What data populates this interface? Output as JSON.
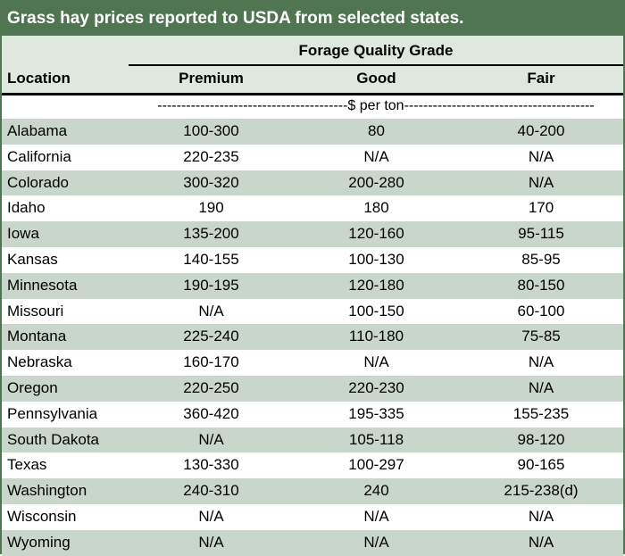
{
  "title": "Grass hay prices reported to USDA from selected states.",
  "group_header": "Forage Quality Grade",
  "columns": {
    "location": "Location",
    "premium": "Premium",
    "good": "Good",
    "fair": "Fair"
  },
  "units": "----------------------------------------$ per ton----------------------------------------",
  "rows": [
    {
      "location": "Alabama",
      "premium": "100-300",
      "good": "80",
      "fair": "40-200"
    },
    {
      "location": "California",
      "premium": "220-235",
      "good": "N/A",
      "fair": "N/A"
    },
    {
      "location": "Colorado",
      "premium": "300-320",
      "good": "200-280",
      "fair": "N/A"
    },
    {
      "location": "Idaho",
      "premium": "190",
      "good": "180",
      "fair": "170"
    },
    {
      "location": "Iowa",
      "premium": "135-200",
      "good": "120-160",
      "fair": "95-115"
    },
    {
      "location": "Kansas",
      "premium": "140-155",
      "good": "100-130",
      "fair": "85-95"
    },
    {
      "location": "Minnesota",
      "premium": "190-195",
      "good": "120-180",
      "fair": "80-150"
    },
    {
      "location": "Missouri",
      "premium": "N/A",
      "good": "100-150",
      "fair": "60-100"
    },
    {
      "location": "Montana",
      "premium": "225-240",
      "good": "110-180",
      "fair": "75-85"
    },
    {
      "location": "Nebraska",
      "premium": "160-170",
      "good": "N/A",
      "fair": "N/A"
    },
    {
      "location": "Oregon",
      "premium": "220-250",
      "good": "220-230",
      "fair": "N/A"
    },
    {
      "location": "Pennsylvania",
      "premium": "360-420",
      "good": "195-335",
      "fair": "155-235"
    },
    {
      "location": "South Dakota",
      "premium": "N/A",
      "good": "105-118",
      "fair": "98-120"
    },
    {
      "location": "Texas",
      "premium": "130-330",
      "good": "100-297",
      "fair": "90-165"
    },
    {
      "location": "Washington",
      "premium": "240-310",
      "good": "240",
      "fair": "215-238(d)"
    },
    {
      "location": "Wisconsin",
      "premium": "N/A",
      "good": "N/A",
      "fair": "N/A"
    },
    {
      "location": "Wyoming",
      "premium": "N/A",
      "good": "N/A",
      "fair": "N/A"
    }
  ],
  "colors": {
    "title_bg": "#4f7551",
    "header_bg": "#dfe8df",
    "row_shade": "#c9d6cc"
  }
}
